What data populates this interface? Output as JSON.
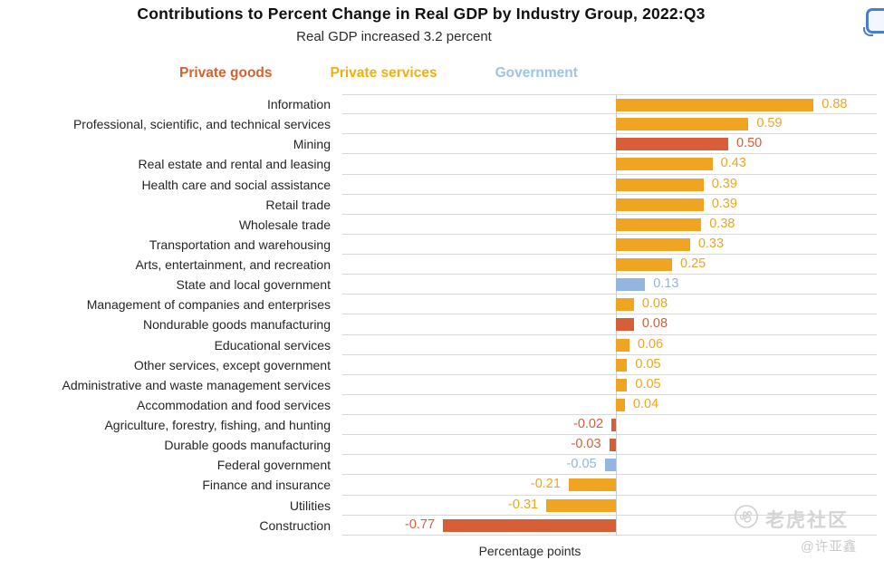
{
  "header": {
    "title": "Contributions to Percent Change in Real GDP by Industry Group, 2022:Q3",
    "subtitle": "Real GDP increased 3.2 percent"
  },
  "legend": {
    "items": [
      {
        "label": "Private goods",
        "color": "#d4622e",
        "group": "goods"
      },
      {
        "label": "Private services",
        "color": "#efaf15",
        "group": "services"
      },
      {
        "label": "Government",
        "color": "#9dc3e6",
        "group": "government"
      }
    ]
  },
  "chart_data": {
    "type": "bar",
    "orientation": "horizontal",
    "title": "Contributions to Percent Change in Real GDP by Industry Group, 2022:Q3",
    "subtitle": "Real GDP increased 3.2 percent",
    "xlabel": "Percentage points",
    "xlim": [
      -1.2,
      1.2
    ],
    "grid": "horizontal row separators only",
    "legend_position": "top",
    "zero_line": true,
    "group_colors": {
      "goods": "#d65f38",
      "services": "#efa521",
      "government": "#93b5df"
    },
    "bars": [
      {
        "category": "Information",
        "value": 0.88,
        "value_label": "0.88",
        "group": "services"
      },
      {
        "category": "Professional, scientific, and technical services",
        "value": 0.59,
        "value_label": "0.59",
        "group": "services"
      },
      {
        "category": "Mining",
        "value": 0.5,
        "value_label": "0.50",
        "group": "goods"
      },
      {
        "category": "Real estate and rental and leasing",
        "value": 0.43,
        "value_label": "0.43",
        "group": "services"
      },
      {
        "category": "Health care and social assistance",
        "value": 0.39,
        "value_label": "0.39",
        "group": "services"
      },
      {
        "category": "Retail trade",
        "value": 0.39,
        "value_label": "0.39",
        "group": "services"
      },
      {
        "category": "Wholesale trade",
        "value": 0.38,
        "value_label": "0.38",
        "group": "services"
      },
      {
        "category": "Transportation and warehousing",
        "value": 0.33,
        "value_label": "0.33",
        "group": "services"
      },
      {
        "category": "Arts, entertainment, and recreation",
        "value": 0.25,
        "value_label": "0.25",
        "group": "services"
      },
      {
        "category": "State and local government",
        "value": 0.13,
        "value_label": "0.13",
        "group": "government"
      },
      {
        "category": "Management of companies and enterprises",
        "value": 0.08,
        "value_label": "0.08",
        "group": "services"
      },
      {
        "category": "Nondurable goods manufacturing",
        "value": 0.08,
        "value_label": "0.08",
        "group": "goods"
      },
      {
        "category": "Educational services",
        "value": 0.06,
        "value_label": "0.06",
        "group": "services"
      },
      {
        "category": "Other services, except government",
        "value": 0.05,
        "value_label": "0.05",
        "group": "services"
      },
      {
        "category": "Administrative and waste management services",
        "value": 0.05,
        "value_label": "0.05",
        "group": "services"
      },
      {
        "category": "Accommodation and food services",
        "value": 0.04,
        "value_label": "0.04",
        "group": "services"
      },
      {
        "category": "Agriculture, forestry, fishing, and hunting",
        "value": -0.02,
        "value_label": "-0.02",
        "group": "goods"
      },
      {
        "category": "Durable goods manufacturing",
        "value": -0.03,
        "value_label": "-0.03",
        "group": "goods"
      },
      {
        "category": "Federal government",
        "value": -0.05,
        "value_label": "-0.05",
        "group": "government"
      },
      {
        "category": "Finance and insurance",
        "value": -0.21,
        "value_label": "-0.21",
        "group": "services"
      },
      {
        "category": "Utilities",
        "value": -0.31,
        "value_label": "-0.31",
        "group": "services"
      },
      {
        "category": "Construction",
        "value": -0.77,
        "value_label": "-0.77",
        "group": "goods"
      }
    ]
  },
  "watermark": {
    "brand": "老虎社区",
    "handle": "@许亚鑫",
    "icon": "paw-circle-icon"
  }
}
